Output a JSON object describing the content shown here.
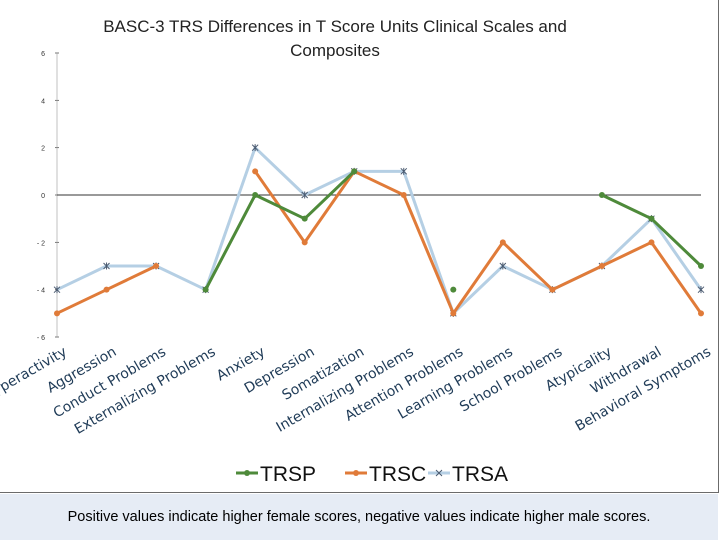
{
  "chart_data": {
    "type": "line",
    "title_lines": [
      "BASC-3 TRS Differences in T Score Units Clinical Scales and",
      "Composites"
    ],
    "categories": [
      "Hyperactivity",
      "Aggression",
      "Conduct Problems",
      "Externalizing Problems",
      "Anxiety",
      "Depression",
      "Somatization",
      "Internalizing Problems",
      "Attention Problems",
      "Learning Problems",
      "School Problems",
      "Atypicality",
      "Withdrawal",
      "Behavioral Symptoms"
    ],
    "ylim": [
      -6,
      6
    ],
    "yticks": [
      "6",
      "4",
      "2",
      "0",
      "- 2",
      "- 4",
      "- 6"
    ],
    "ytick_values": [
      6,
      4,
      2,
      0,
      -2,
      -4,
      -6
    ],
    "series": [
      {
        "name": "TRSP",
        "color": "#4e8a3a",
        "values": [
          null,
          null,
          null,
          -4,
          0,
          -1,
          1,
          null,
          -4,
          null,
          null,
          0,
          -1,
          -3
        ]
      },
      {
        "name": "TRSC",
        "color": "#e07b39",
        "values": [
          -5,
          -4,
          -3,
          null,
          1,
          -2,
          1,
          0,
          -5,
          -2,
          -4,
          -3,
          -2,
          -5
        ]
      },
      {
        "name": "TRSA",
        "color": "#b5cfe4",
        "values": [
          -4,
          -3,
          -3,
          -4,
          2,
          0,
          1,
          1,
          -5,
          -3,
          -4,
          -3,
          -1,
          -4
        ]
      }
    ]
  },
  "caption": "Positive values indicate higher female scores, negative values indicate higher male scores."
}
